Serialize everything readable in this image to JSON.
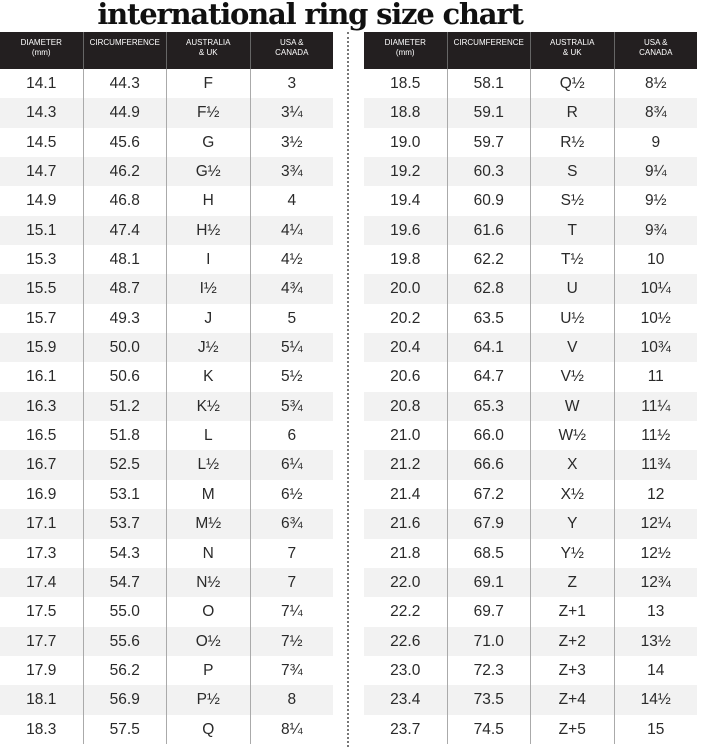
{
  "title": "international ring size chart",
  "chart_data": {
    "type": "table",
    "title": "international ring size chart",
    "columns": [
      "DIAMETER\n(mm)",
      "CIRCUMFERENCE",
      "AUSTRALIA\n& UK",
      "USA &\nCANADA"
    ],
    "rows": [
      [
        "14.1",
        "44.3",
        "F",
        "3"
      ],
      [
        "14.3",
        "44.9",
        "F½",
        "3¼"
      ],
      [
        "14.5",
        "45.6",
        "G",
        "3½"
      ],
      [
        "14.7",
        "46.2",
        "G½",
        "3¾"
      ],
      [
        "14.9",
        "46.8",
        "H",
        "4"
      ],
      [
        "15.1",
        "47.4",
        "H½",
        "4¼"
      ],
      [
        "15.3",
        "48.1",
        "I",
        "4½"
      ],
      [
        "15.5",
        "48.7",
        "I½",
        "4¾"
      ],
      [
        "15.7",
        "49.3",
        "J",
        "5"
      ],
      [
        "15.9",
        "50.0",
        "J½",
        "5¼"
      ],
      [
        "16.1",
        "50.6",
        "K",
        "5½"
      ],
      [
        "16.3",
        "51.2",
        "K½",
        "5¾"
      ],
      [
        "16.5",
        "51.8",
        "L",
        "6"
      ],
      [
        "16.7",
        "52.5",
        "L½",
        "6¼"
      ],
      [
        "16.9",
        "53.1",
        "M",
        "6½"
      ],
      [
        "17.1",
        "53.7",
        "M½",
        "6¾"
      ],
      [
        "17.3",
        "54.3",
        "N",
        "7"
      ],
      [
        "17.4",
        "54.7",
        "N½",
        "7"
      ],
      [
        "17.5",
        "55.0",
        "O",
        "7¼"
      ],
      [
        "17.7",
        "55.6",
        "O½",
        "7½"
      ],
      [
        "17.9",
        "56.2",
        "P",
        "7¾"
      ],
      [
        "18.1",
        "56.9",
        "P½",
        "8"
      ],
      [
        "18.3",
        "57.5",
        "Q",
        "8¼"
      ],
      [
        "18.5",
        "58.1",
        "Q½",
        "8½"
      ],
      [
        "18.8",
        "59.1",
        "R",
        "8¾"
      ],
      [
        "19.0",
        "59.7",
        "R½",
        "9"
      ],
      [
        "19.2",
        "60.3",
        "S",
        "9¼"
      ],
      [
        "19.4",
        "60.9",
        "S½",
        "9½"
      ],
      [
        "19.6",
        "61.6",
        "T",
        "9¾"
      ],
      [
        "19.8",
        "62.2",
        "T½",
        "10"
      ],
      [
        "20.0",
        "62.8",
        "U",
        "10¼"
      ],
      [
        "20.2",
        "63.5",
        "U½",
        "10½"
      ],
      [
        "20.4",
        "64.1",
        "V",
        "10¾"
      ],
      [
        "20.6",
        "64.7",
        "V½",
        "11"
      ],
      [
        "20.8",
        "65.3",
        "W",
        "11¼"
      ],
      [
        "21.0",
        "66.0",
        "W½",
        "11½"
      ],
      [
        "21.2",
        "66.6",
        "X",
        "11¾"
      ],
      [
        "21.4",
        "67.2",
        "X½",
        "12"
      ],
      [
        "21.6",
        "67.9",
        "Y",
        "12¼"
      ],
      [
        "21.8",
        "68.5",
        "Y½",
        "12½"
      ],
      [
        "22.0",
        "69.1",
        "Z",
        "12¾"
      ],
      [
        "22.2",
        "69.7",
        "Z+1",
        "13"
      ],
      [
        "22.6",
        "71.0",
        "Z+2",
        "13½"
      ],
      [
        "23.0",
        "72.3",
        "Z+3",
        "14"
      ],
      [
        "23.4",
        "73.5",
        "Z+4",
        "14½"
      ],
      [
        "23.7",
        "74.5",
        "Z+5",
        "15"
      ]
    ],
    "colors": {
      "header_bg": "#231f20",
      "header_text": "#ffffff",
      "alt_row": "#f2f2f2"
    }
  }
}
